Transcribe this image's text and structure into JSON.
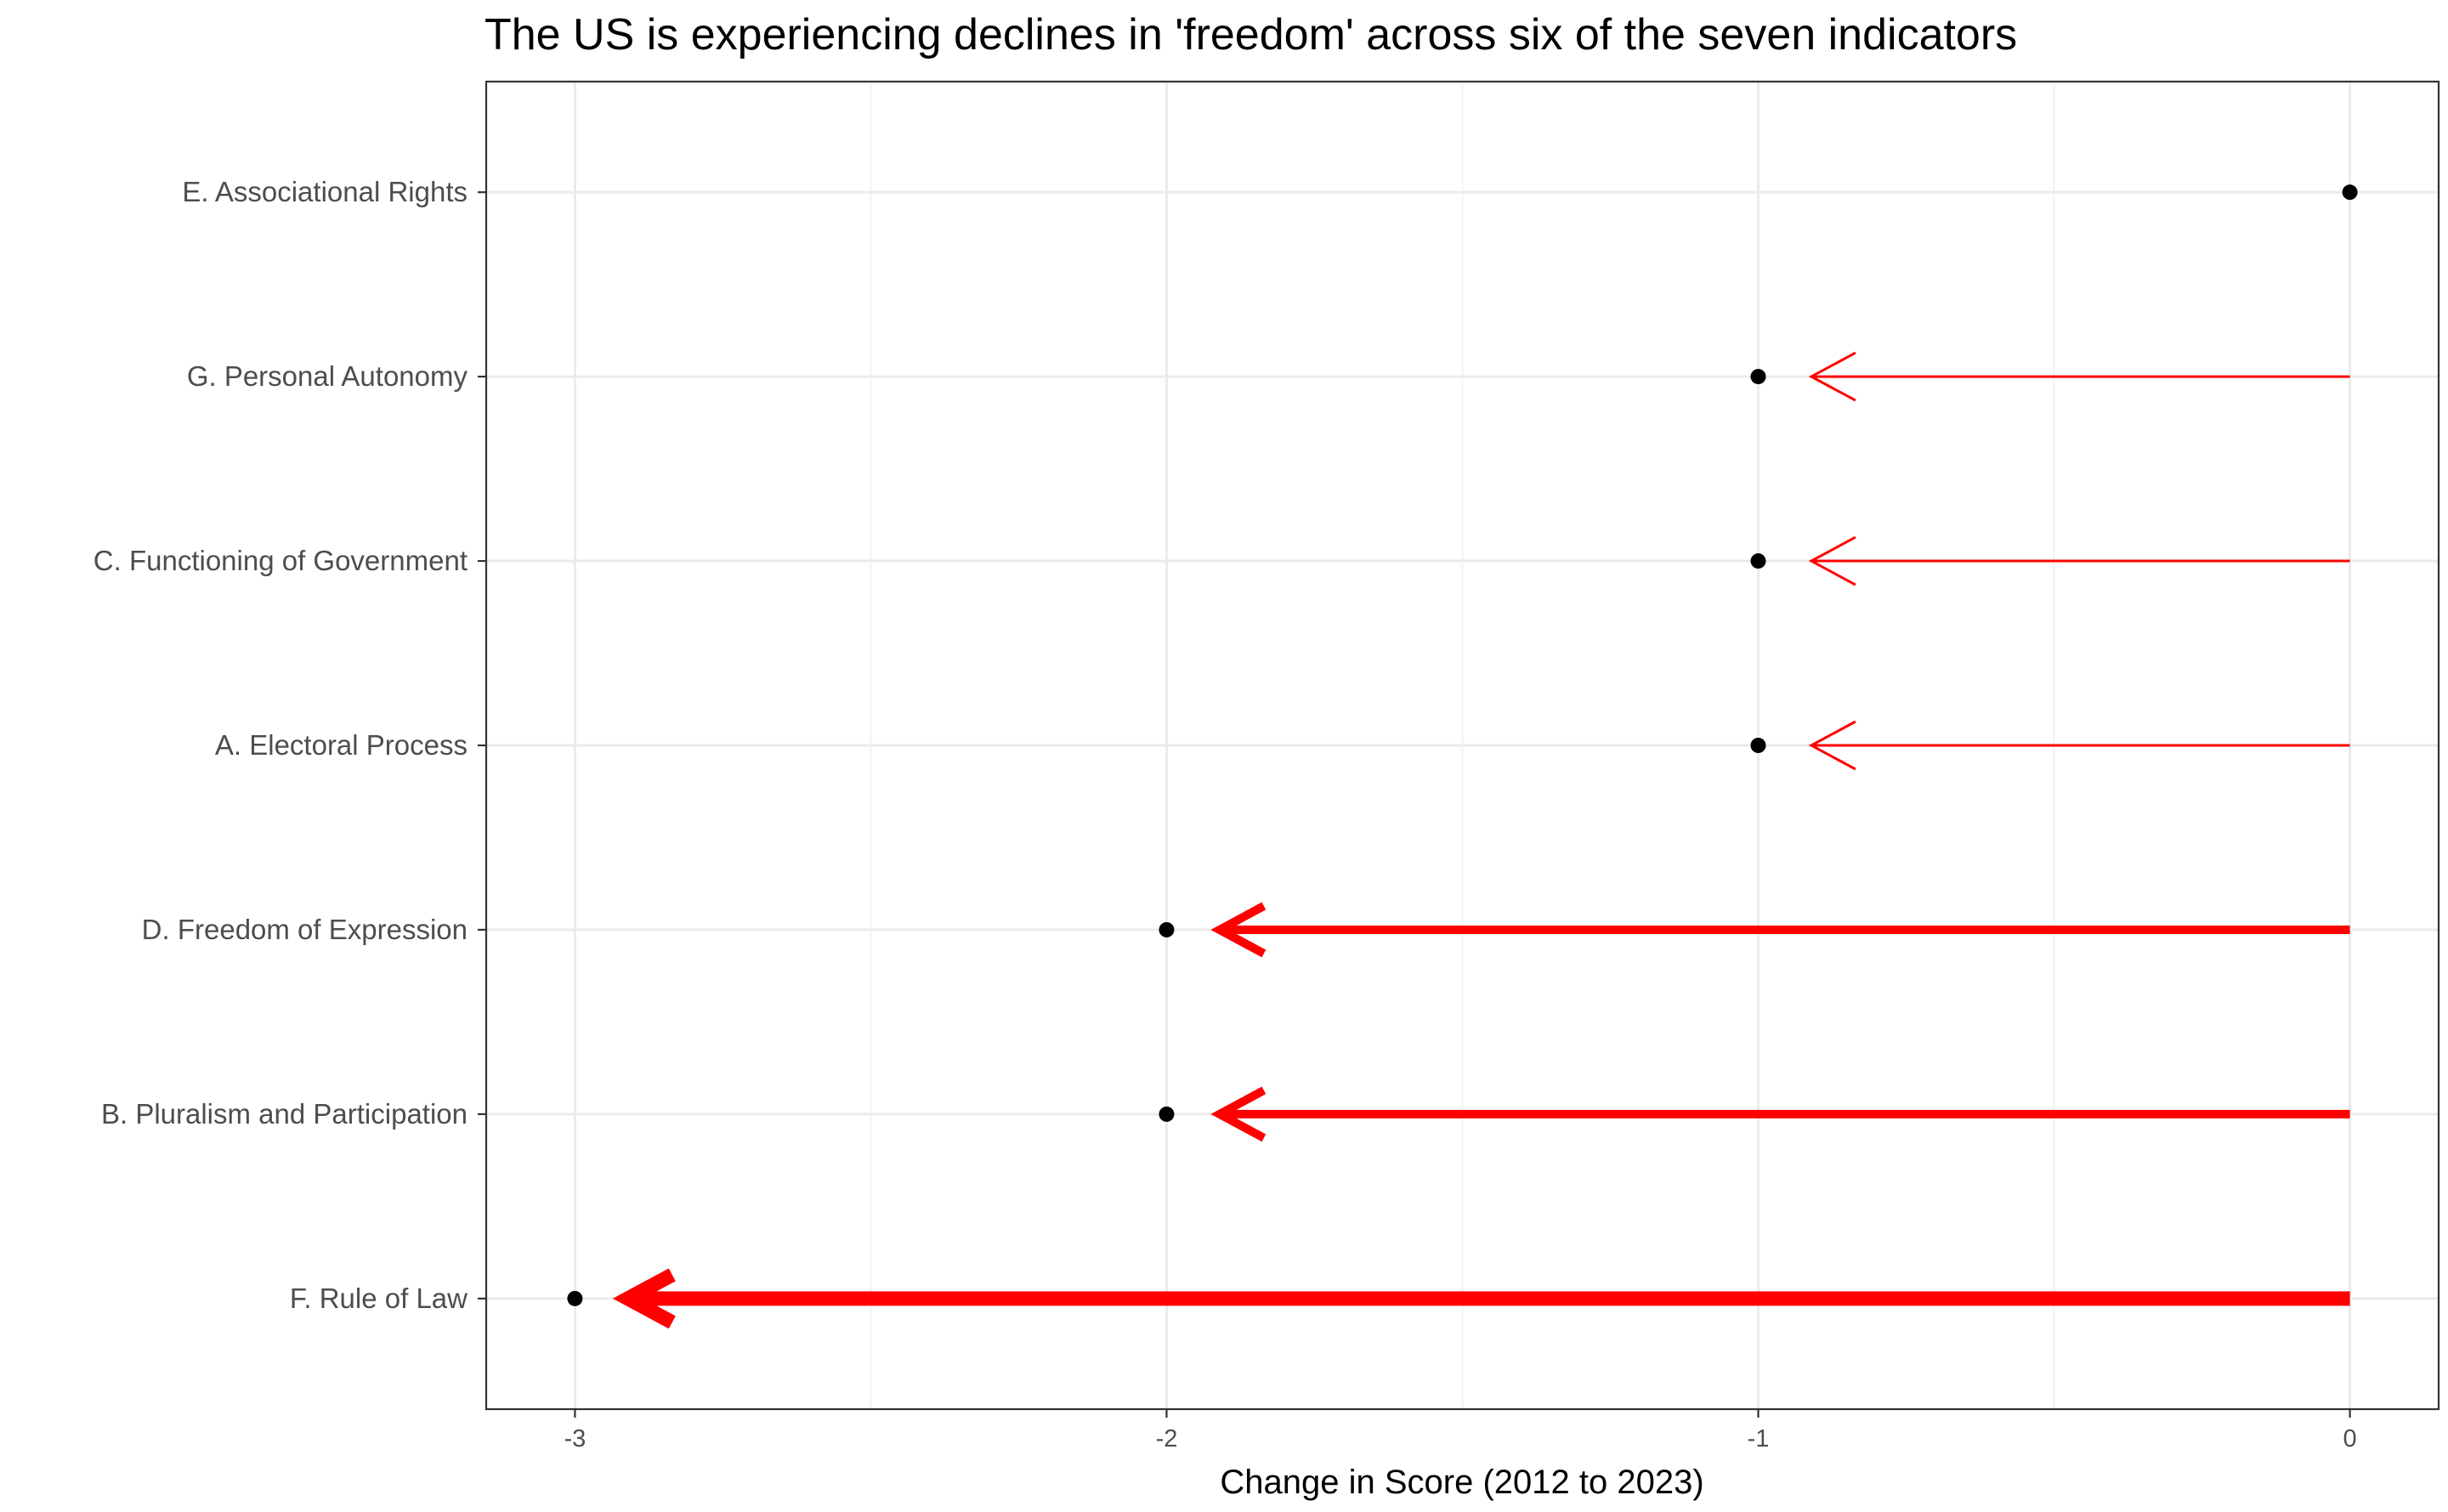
{
  "chart_data": {
    "type": "arrow-dot",
    "title": "The US is experiencing declines in 'freedom' across six of the seven indicators",
    "xlabel": "Change in Score (2012 to 2023)",
    "ylabel": "",
    "xlim": [
      -3.15,
      0.15
    ],
    "xticks": [
      -3,
      -2,
      -1,
      0
    ],
    "xtick_labels": [
      "-3",
      "-2",
      "-1",
      "0"
    ],
    "grid": true,
    "arrow_color": "#ff0000",
    "point_color": "#000000",
    "categories": [
      "E. Associational Rights",
      "G. Personal Autonomy",
      "C. Functioning of Government",
      "A. Electoral Process",
      "D. Freedom of Expression",
      "B. Pluralism and Participation",
      "F. Rule of Law"
    ],
    "values": [
      0,
      -1,
      -1,
      -1,
      -2,
      -2,
      -3
    ]
  }
}
